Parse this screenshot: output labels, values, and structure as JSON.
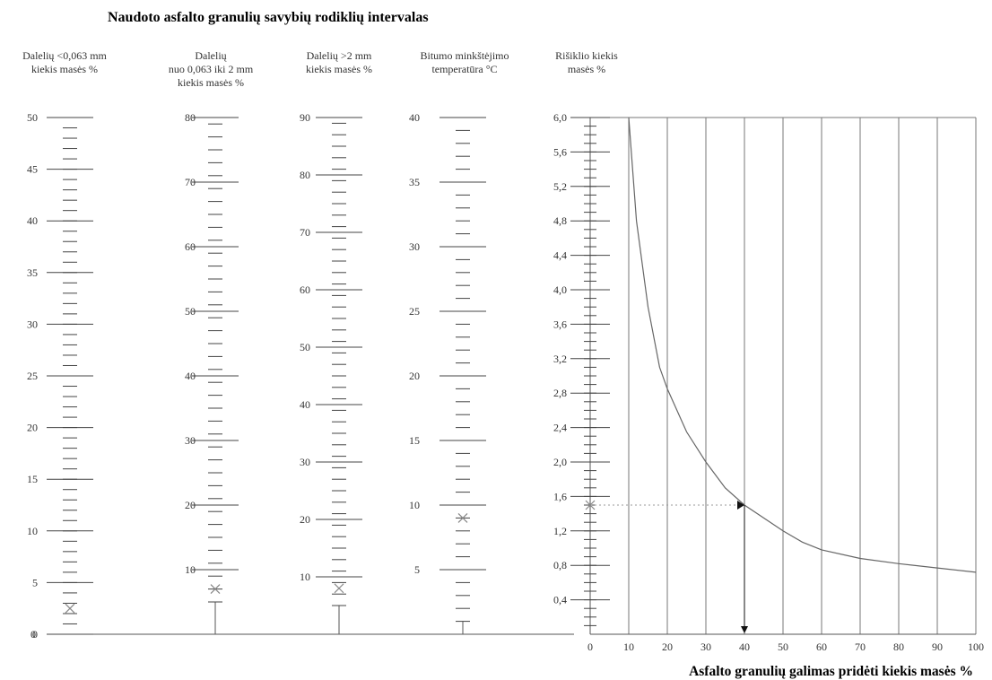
{
  "title": "Naudoto asfalto granulių savybių rodiklių intervalas",
  "chart_data": [
    {
      "type": "scale",
      "header": [
        "Dalelių <0,063 mm",
        "kiekis  masės %"
      ],
      "range": [
        0,
        50
      ],
      "major_ticks": [
        0,
        5,
        10,
        15,
        20,
        25,
        30,
        35,
        40,
        45,
        50
      ],
      "minor_step": 1,
      "marker": 2.5
    },
    {
      "type": "scale",
      "header": [
        "Dalelių",
        "nuo 0,063 iki 2 mm",
        "kiekis masės %"
      ],
      "range": [
        5,
        80
      ],
      "major_ticks": [
        10,
        20,
        30,
        40,
        50,
        60,
        70,
        80
      ],
      "minor_step": 2,
      "marker": 7
    },
    {
      "type": "scale",
      "header": [
        "Dalelių  >2 mm",
        "kiekis masės %"
      ],
      "range": [
        5,
        90
      ],
      "major_ticks": [
        10,
        20,
        30,
        40,
        50,
        60,
        70,
        80,
        90
      ],
      "minor_step": 2,
      "marker": 8
    },
    {
      "type": "scale",
      "header": [
        "Bitumo minkštėjimo",
        "temperatūra °C"
      ],
      "range": [
        1,
        40
      ],
      "major_ticks": [
        5,
        10,
        15,
        20,
        25,
        30,
        35,
        40
      ],
      "minor_step": 1,
      "marker": 9
    },
    {
      "type": "line",
      "header": [
        "Rišiklio kiekis",
        "masės %"
      ],
      "xlabel": "Asfalto granulių galimas pridėti kiekis masės %",
      "xlim": [
        0,
        100
      ],
      "x_ticks": [
        0,
        10,
        20,
        30,
        40,
        50,
        60,
        70,
        80,
        90,
        100
      ],
      "ylim": [
        0,
        6.0
      ],
      "y_ticks": [
        0.4,
        0.8,
        1.2,
        1.6,
        2.0,
        2.4,
        2.8,
        3.2,
        3.6,
        4.0,
        4.4,
        4.8,
        5.2,
        5.6,
        6.0
      ],
      "y_tick_labels": [
        "0,4",
        "0,8",
        "1,2",
        "1,6",
        "2,0",
        "2,4",
        "2,8",
        "3,2",
        "3,6",
        "4,0",
        "4,4",
        "4,8",
        "5,2",
        "5,6",
        "6,0"
      ],
      "minor_step": 0.1,
      "grid": true,
      "series": [
        {
          "x": [
            10,
            12,
            15,
            18,
            20,
            25,
            30,
            35,
            40,
            45,
            50,
            55,
            60,
            70,
            80,
            90,
            100
          ],
          "y": [
            6.0,
            4.8,
            3.8,
            3.1,
            2.85,
            2.35,
            2.0,
            1.7,
            1.5,
            1.35,
            1.2,
            1.07,
            0.98,
            0.88,
            0.82,
            0.77,
            0.72
          ]
        }
      ],
      "reading": {
        "x": 40,
        "y": 1.5
      }
    }
  ],
  "shared_zero_label": "0"
}
